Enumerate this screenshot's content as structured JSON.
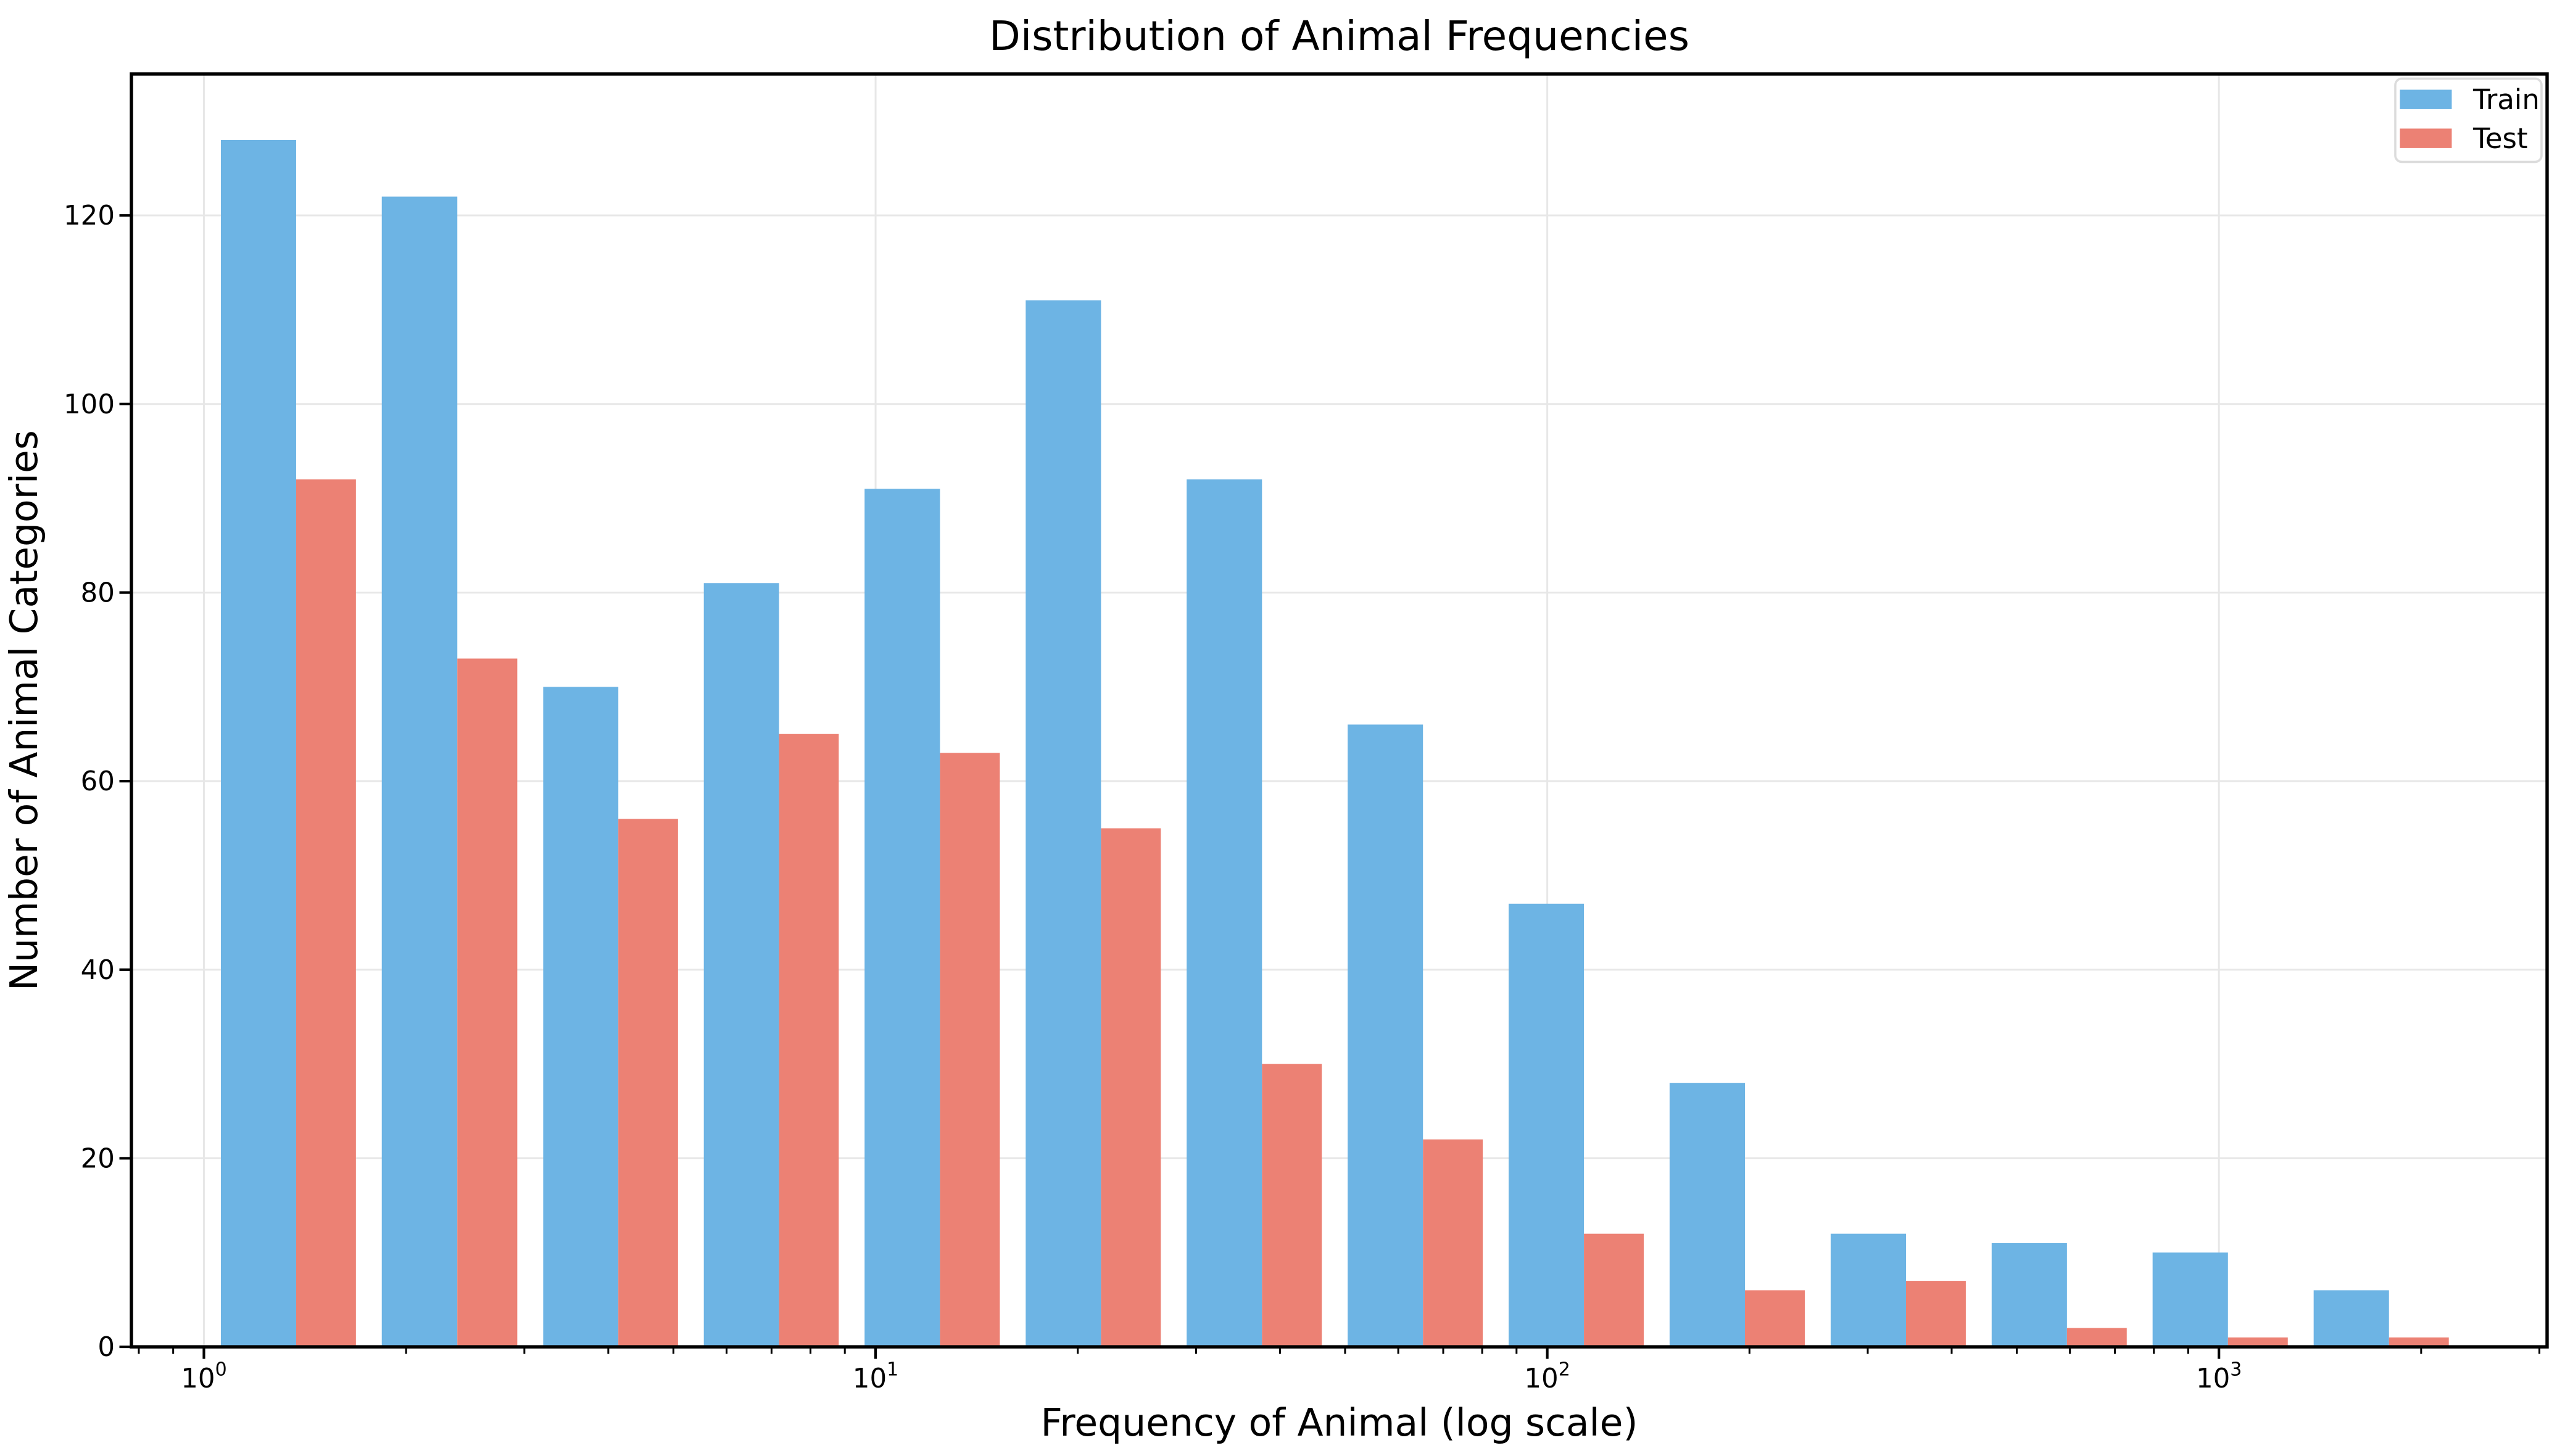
{
  "figure": {
    "background": "#ffffff"
  },
  "chart_data": {
    "type": "bar",
    "title": "Distribution of Animal Frequencies",
    "xlabel": "Frequency of Animal (log scale)",
    "ylabel": "Number of Animal Categories",
    "x_scale": "log",
    "grid": true,
    "xlim": [
      0.78,
      3080
    ],
    "ylim": [
      0,
      135
    ],
    "y_ticks": [
      0,
      20,
      40,
      60,
      80,
      100,
      120
    ],
    "x_major_ticks": [
      1,
      10,
      100,
      1000
    ],
    "x_major_tick_labels": [
      "10^0",
      "10^1",
      "10^2",
      "10^3"
    ],
    "x_major_tick_exponents": [
      0,
      1,
      2,
      3
    ],
    "x_minor_ticks": [
      0.8,
      0.9,
      2,
      3,
      4,
      5,
      6,
      7,
      8,
      9,
      20,
      30,
      40,
      50,
      60,
      70,
      80,
      90,
      200,
      300,
      400,
      500,
      600,
      700,
      800,
      900,
      2000,
      3000
    ],
    "bin_edges": [
      1.06,
      1.84,
      3.2,
      5.55,
      9.63,
      16.73,
      29.05,
      50.45,
      87.6,
      152.1,
      264.2,
      458.8,
      796.6,
      1383.6,
      2402.8
    ],
    "series": [
      {
        "name": "Train",
        "color": "#6db4e4",
        "values": [
          128,
          122,
          70,
          81,
          91,
          111,
          92,
          66,
          47,
          28,
          12,
          11,
          10,
          6
        ]
      },
      {
        "name": "Test",
        "color": "#ec8174",
        "values": [
          92,
          73,
          56,
          65,
          63,
          55,
          30,
          22,
          12,
          6,
          7,
          2,
          1,
          1
        ]
      }
    ],
    "legend": {
      "position": "upper right",
      "entries": [
        "Train",
        "Test"
      ]
    },
    "colors": {
      "grid": "#e7e7e7",
      "spine": "#000000",
      "legend_border": "#dcdcdc",
      "background": "#ffffff"
    }
  }
}
